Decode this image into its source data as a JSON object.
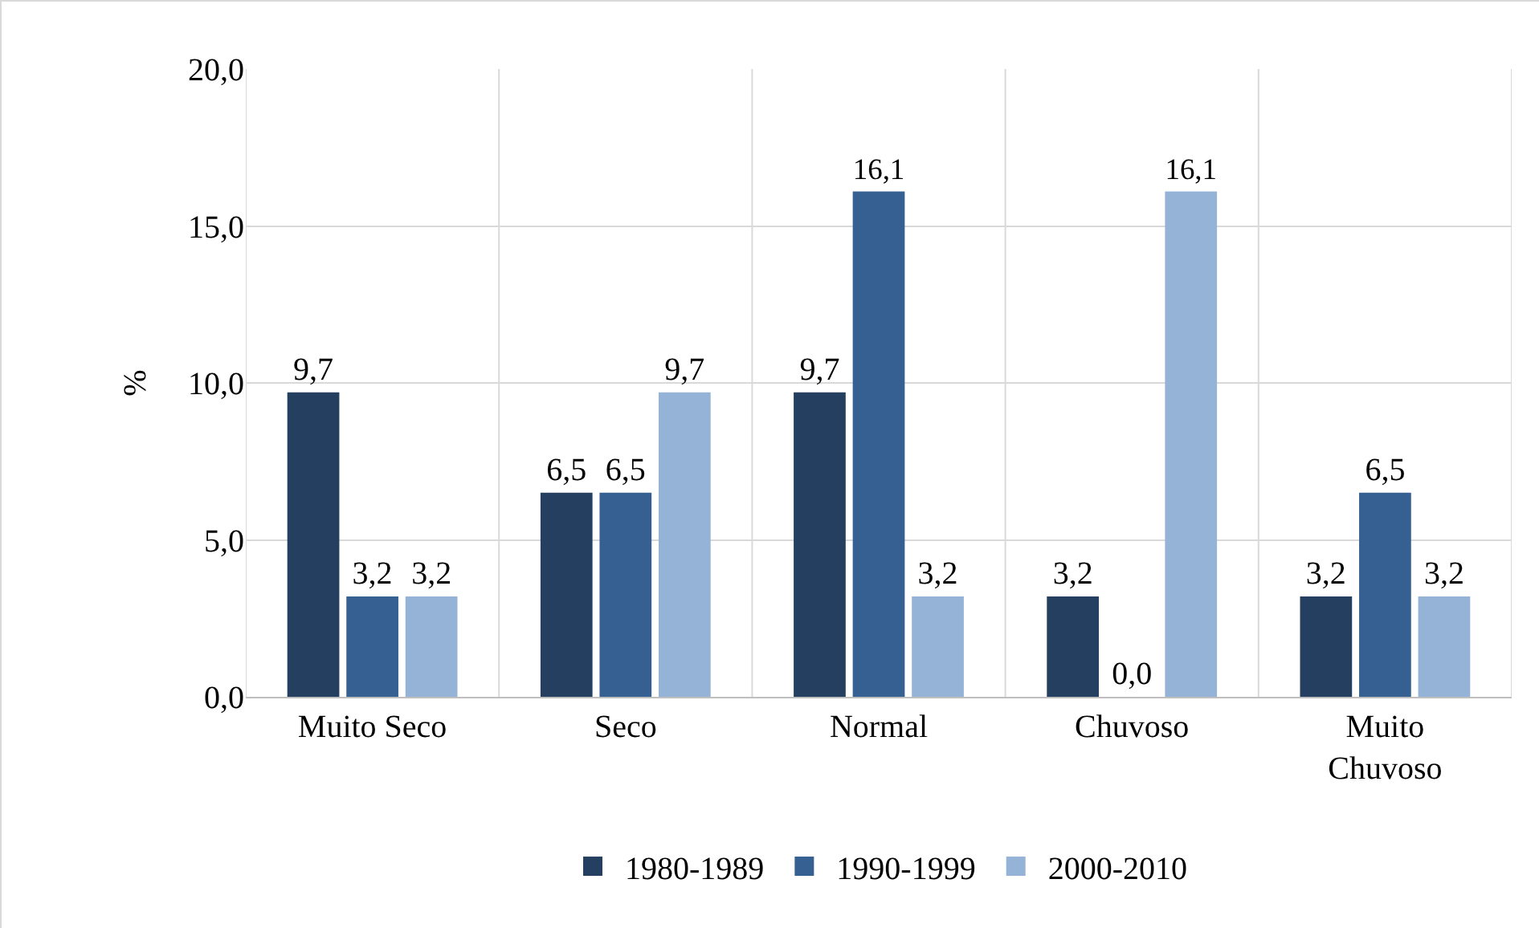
{
  "chart_data": {
    "type": "bar",
    "ylabel": "%",
    "categories": [
      "Muito Seco",
      "Seco",
      "Normal",
      "Chuvoso",
      "Muito Chuvoso"
    ],
    "series": [
      {
        "name": "1980-1989",
        "color": "#243f60",
        "values": [
          9.7,
          6.5,
          9.7,
          3.2,
          3.2
        ],
        "value_labels": [
          "9,7",
          "6,5",
          "9,7",
          "3,2",
          "3,2"
        ]
      },
      {
        "name": "1990-1999",
        "color": "#376092",
        "values": [
          3.2,
          6.5,
          16.1,
          0.0,
          6.5
        ],
        "value_labels": [
          "3,2",
          "6,5",
          "16,1",
          "0,0",
          "6,5"
        ]
      },
      {
        "name": "2000-2010",
        "color": "#95b3d7",
        "values": [
          3.2,
          9.7,
          3.2,
          16.1,
          3.2
        ],
        "value_labels": [
          "3,2",
          "9,7",
          "3,2",
          "16,1",
          "3,2"
        ]
      }
    ],
    "ylim": [
      0,
      20
    ],
    "yticks": [
      {
        "value": 0,
        "label": "0,0"
      },
      {
        "value": 5,
        "label": "5,0"
      },
      {
        "value": 10,
        "label": "10,0"
      },
      {
        "value": 15,
        "label": "15,0"
      },
      {
        "value": 20,
        "label": "20,0"
      }
    ],
    "grid": true,
    "legend": "bottom"
  }
}
